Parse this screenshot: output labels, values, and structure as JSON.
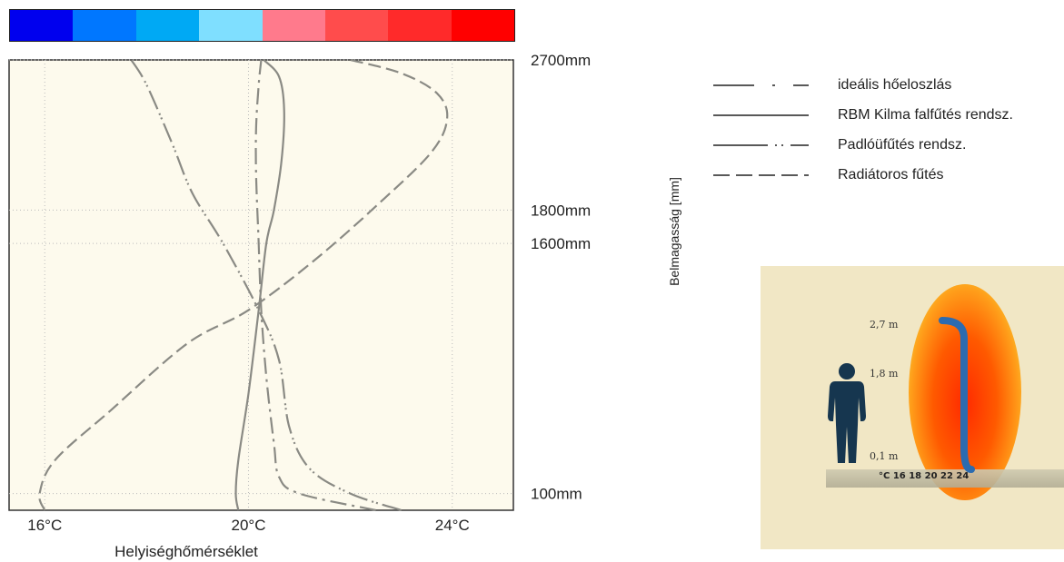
{
  "colorbar": {
    "colors": [
      "#0000ee",
      "#0077ff",
      "#00a9f4",
      "#7fdfff",
      "#ff7a8c",
      "#ff4c4c",
      "#ff2a2a",
      "#ff0000"
    ]
  },
  "chart_data": {
    "type": "line",
    "xlabel": "Helyiséghőmérséklet",
    "ylabel": "Belmagasság [mm]",
    "xlim": [
      15.3,
      25.2
    ],
    "ylim": [
      0,
      2700
    ],
    "x_ticks": [
      {
        "value": 16,
        "label": "16°C"
      },
      {
        "value": 20,
        "label": "20°C"
      },
      {
        "value": 24,
        "label": "24°C"
      }
    ],
    "y_ticks": [
      {
        "value": 2700,
        "label": "2700mm"
      },
      {
        "value": 1800,
        "label": "1800mm"
      },
      {
        "value": 1600,
        "label": "1600mm"
      },
      {
        "value": 100,
        "label": "100mm"
      }
    ],
    "grid": true,
    "background": "#fdfaed",
    "series": [
      {
        "name": "ideális hőeloszlás",
        "dash": "18 6 3 6",
        "x": [
          22.5,
          21.0,
          20.6,
          20.5,
          20.35,
          20.25,
          20.2,
          20.15,
          20.15,
          20.2,
          20.25
        ],
        "y": [
          0,
          100,
          200,
          400,
          800,
          1200,
          1600,
          2000,
          2300,
          2550,
          2700
        ]
      },
      {
        "name": "RBM Kilma falfűtés rendsz.",
        "dash": "",
        "x": [
          19.8,
          19.75,
          19.8,
          20.0,
          20.2,
          20.35,
          20.5,
          20.65,
          20.7,
          20.6,
          20.3
        ],
        "y": [
          0,
          100,
          300,
          700,
          1200,
          1600,
          1800,
          2100,
          2400,
          2600,
          2700
        ]
      },
      {
        "name": "Padlóüfűtés rendsz.",
        "dash": "22 5 2 3 2 5",
        "x": [
          23.0,
          22.0,
          21.2,
          20.8,
          20.6,
          20.2,
          19.5,
          18.9,
          18.5,
          18.0,
          17.7
        ],
        "y": [
          0,
          100,
          250,
          500,
          900,
          1200,
          1600,
          1900,
          2200,
          2550,
          2700
        ]
      },
      {
        "name": "Radiátoros fűtés",
        "dash": "14 6",
        "x": [
          16.0,
          15.9,
          16.2,
          17.3,
          18.8,
          20.0,
          21.3,
          22.6,
          23.6,
          23.9,
          23.7,
          23.0,
          22.0
        ],
        "y": [
          0,
          100,
          300,
          600,
          1000,
          1200,
          1500,
          1850,
          2150,
          2350,
          2500,
          2620,
          2700
        ]
      }
    ]
  },
  "legend": [
    {
      "label": "ideális hőeloszlás",
      "dash": "45 20 3 20"
    },
    {
      "label": "RBM Kilma falfűtés rendsz.",
      "dash": ""
    },
    {
      "label": "Padlóüfűtés rendsz.",
      "dash": "60 8 2 5 2 8"
    },
    {
      "label": "Radiátoros fűtés",
      "dash": "18 7"
    }
  ],
  "inset": {
    "labels": {
      "h27": "2,7 m",
      "h18": "1,8 m",
      "h01": "0,1 m"
    },
    "scale": "°C  16 18 20 22 24",
    "person_color": "#16364f",
    "curve_color": "#2c6bb0"
  }
}
